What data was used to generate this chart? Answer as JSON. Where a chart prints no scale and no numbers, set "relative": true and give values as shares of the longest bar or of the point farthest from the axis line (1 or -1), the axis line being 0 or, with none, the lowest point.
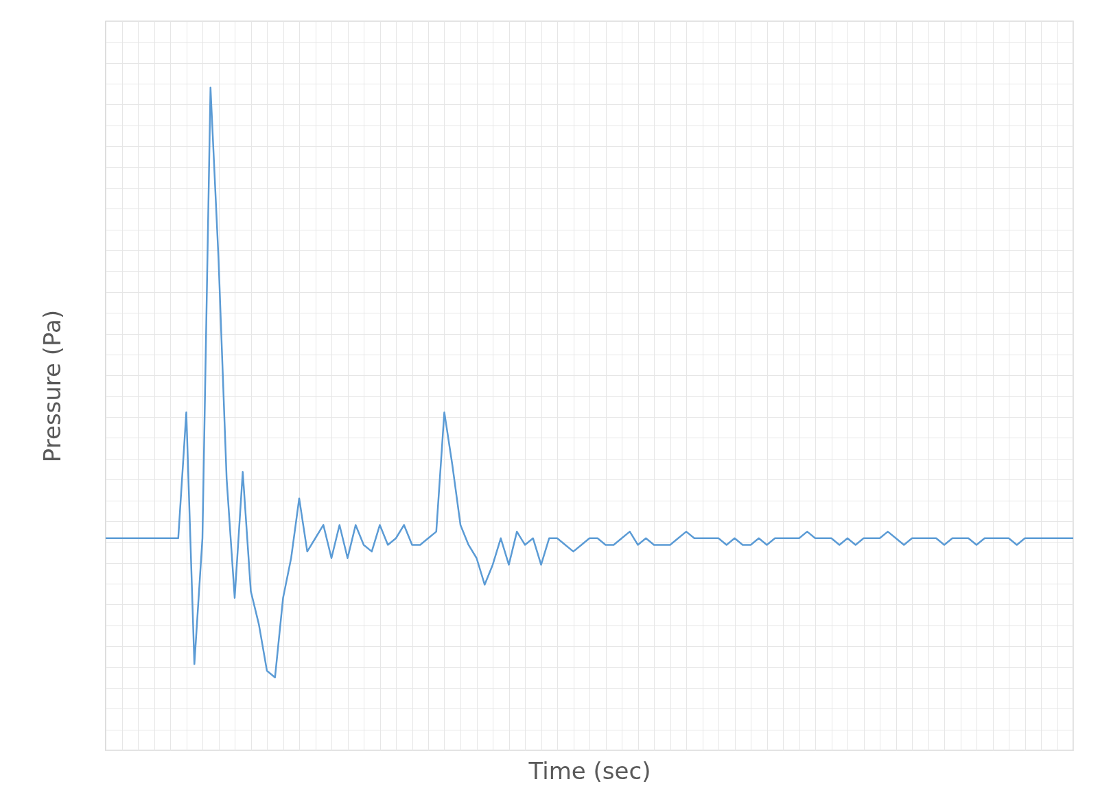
{
  "chart_data": {
    "type": "line",
    "xlabel": "Time (sec)",
    "ylabel": "Pressure (Pa)",
    "relative": true,
    "grid": true,
    "tick_labels": false,
    "categories": [
      null,
      null,
      null,
      null,
      null,
      null,
      null,
      null,
      null,
      null,
      null,
      null,
      null,
      null,
      null,
      null,
      null,
      null,
      null,
      null,
      null,
      null,
      null,
      null,
      null,
      null,
      null,
      null,
      null,
      null,
      null,
      null,
      null,
      null,
      null,
      null,
      null,
      null,
      null,
      null,
      null,
      null,
      null,
      null,
      null,
      null,
      null,
      null,
      null,
      null,
      null,
      null,
      null,
      null,
      null,
      null,
      null,
      null,
      null,
      null,
      null,
      null,
      null,
      null,
      null,
      null,
      null,
      null,
      null,
      null,
      null,
      null,
      null,
      null,
      null,
      null,
      null,
      null,
      null,
      null,
      null,
      null,
      null,
      null,
      null,
      null,
      null,
      null,
      null,
      null,
      null,
      null,
      null,
      null,
      null,
      null,
      null,
      null,
      null,
      null,
      null,
      null,
      null,
      null,
      null,
      null,
      null,
      null,
      null,
      null,
      null,
      null,
      null,
      null,
      null,
      null,
      null,
      null,
      null,
      null,
      null
    ],
    "series": [
      {
        "color": "#5b9bd5",
        "values": [
          0.32,
          0.32,
          0.32,
          0.32,
          0.32,
          0.32,
          0.32,
          0.32,
          0.32,
          0.32,
          0.51,
          0.13,
          0.32,
          1.0,
          0.74,
          0.41,
          0.23,
          0.42,
          0.24,
          0.19,
          0.12,
          0.11,
          0.23,
          0.29,
          0.38,
          0.3,
          0.32,
          0.34,
          0.29,
          0.34,
          0.29,
          0.34,
          0.31,
          0.3,
          0.34,
          0.31,
          0.32,
          0.34,
          0.31,
          0.31,
          0.32,
          0.33,
          0.51,
          0.43,
          0.34,
          0.31,
          0.29,
          0.25,
          0.28,
          0.32,
          0.28,
          0.33,
          0.31,
          0.32,
          0.28,
          0.32,
          0.32,
          0.31,
          0.3,
          0.31,
          0.32,
          0.32,
          0.31,
          0.31,
          0.32,
          0.33,
          0.31,
          0.32,
          0.31,
          0.31,
          0.31,
          0.32,
          0.33,
          0.32,
          0.32,
          0.32,
          0.32,
          0.31,
          0.32,
          0.31,
          0.31,
          0.32,
          0.31,
          0.32,
          0.32,
          0.32,
          0.32,
          0.33,
          0.32,
          0.32,
          0.32,
          0.31,
          0.32,
          0.31,
          0.32,
          0.32,
          0.32,
          0.33,
          0.32,
          0.31,
          0.32,
          0.32,
          0.32,
          0.32,
          0.31,
          0.32,
          0.32,
          0.32,
          0.31,
          0.32,
          0.32,
          0.32,
          0.32,
          0.31,
          0.32,
          0.32,
          0.32,
          0.32,
          0.32,
          0.32,
          0.32
        ]
      }
    ]
  }
}
